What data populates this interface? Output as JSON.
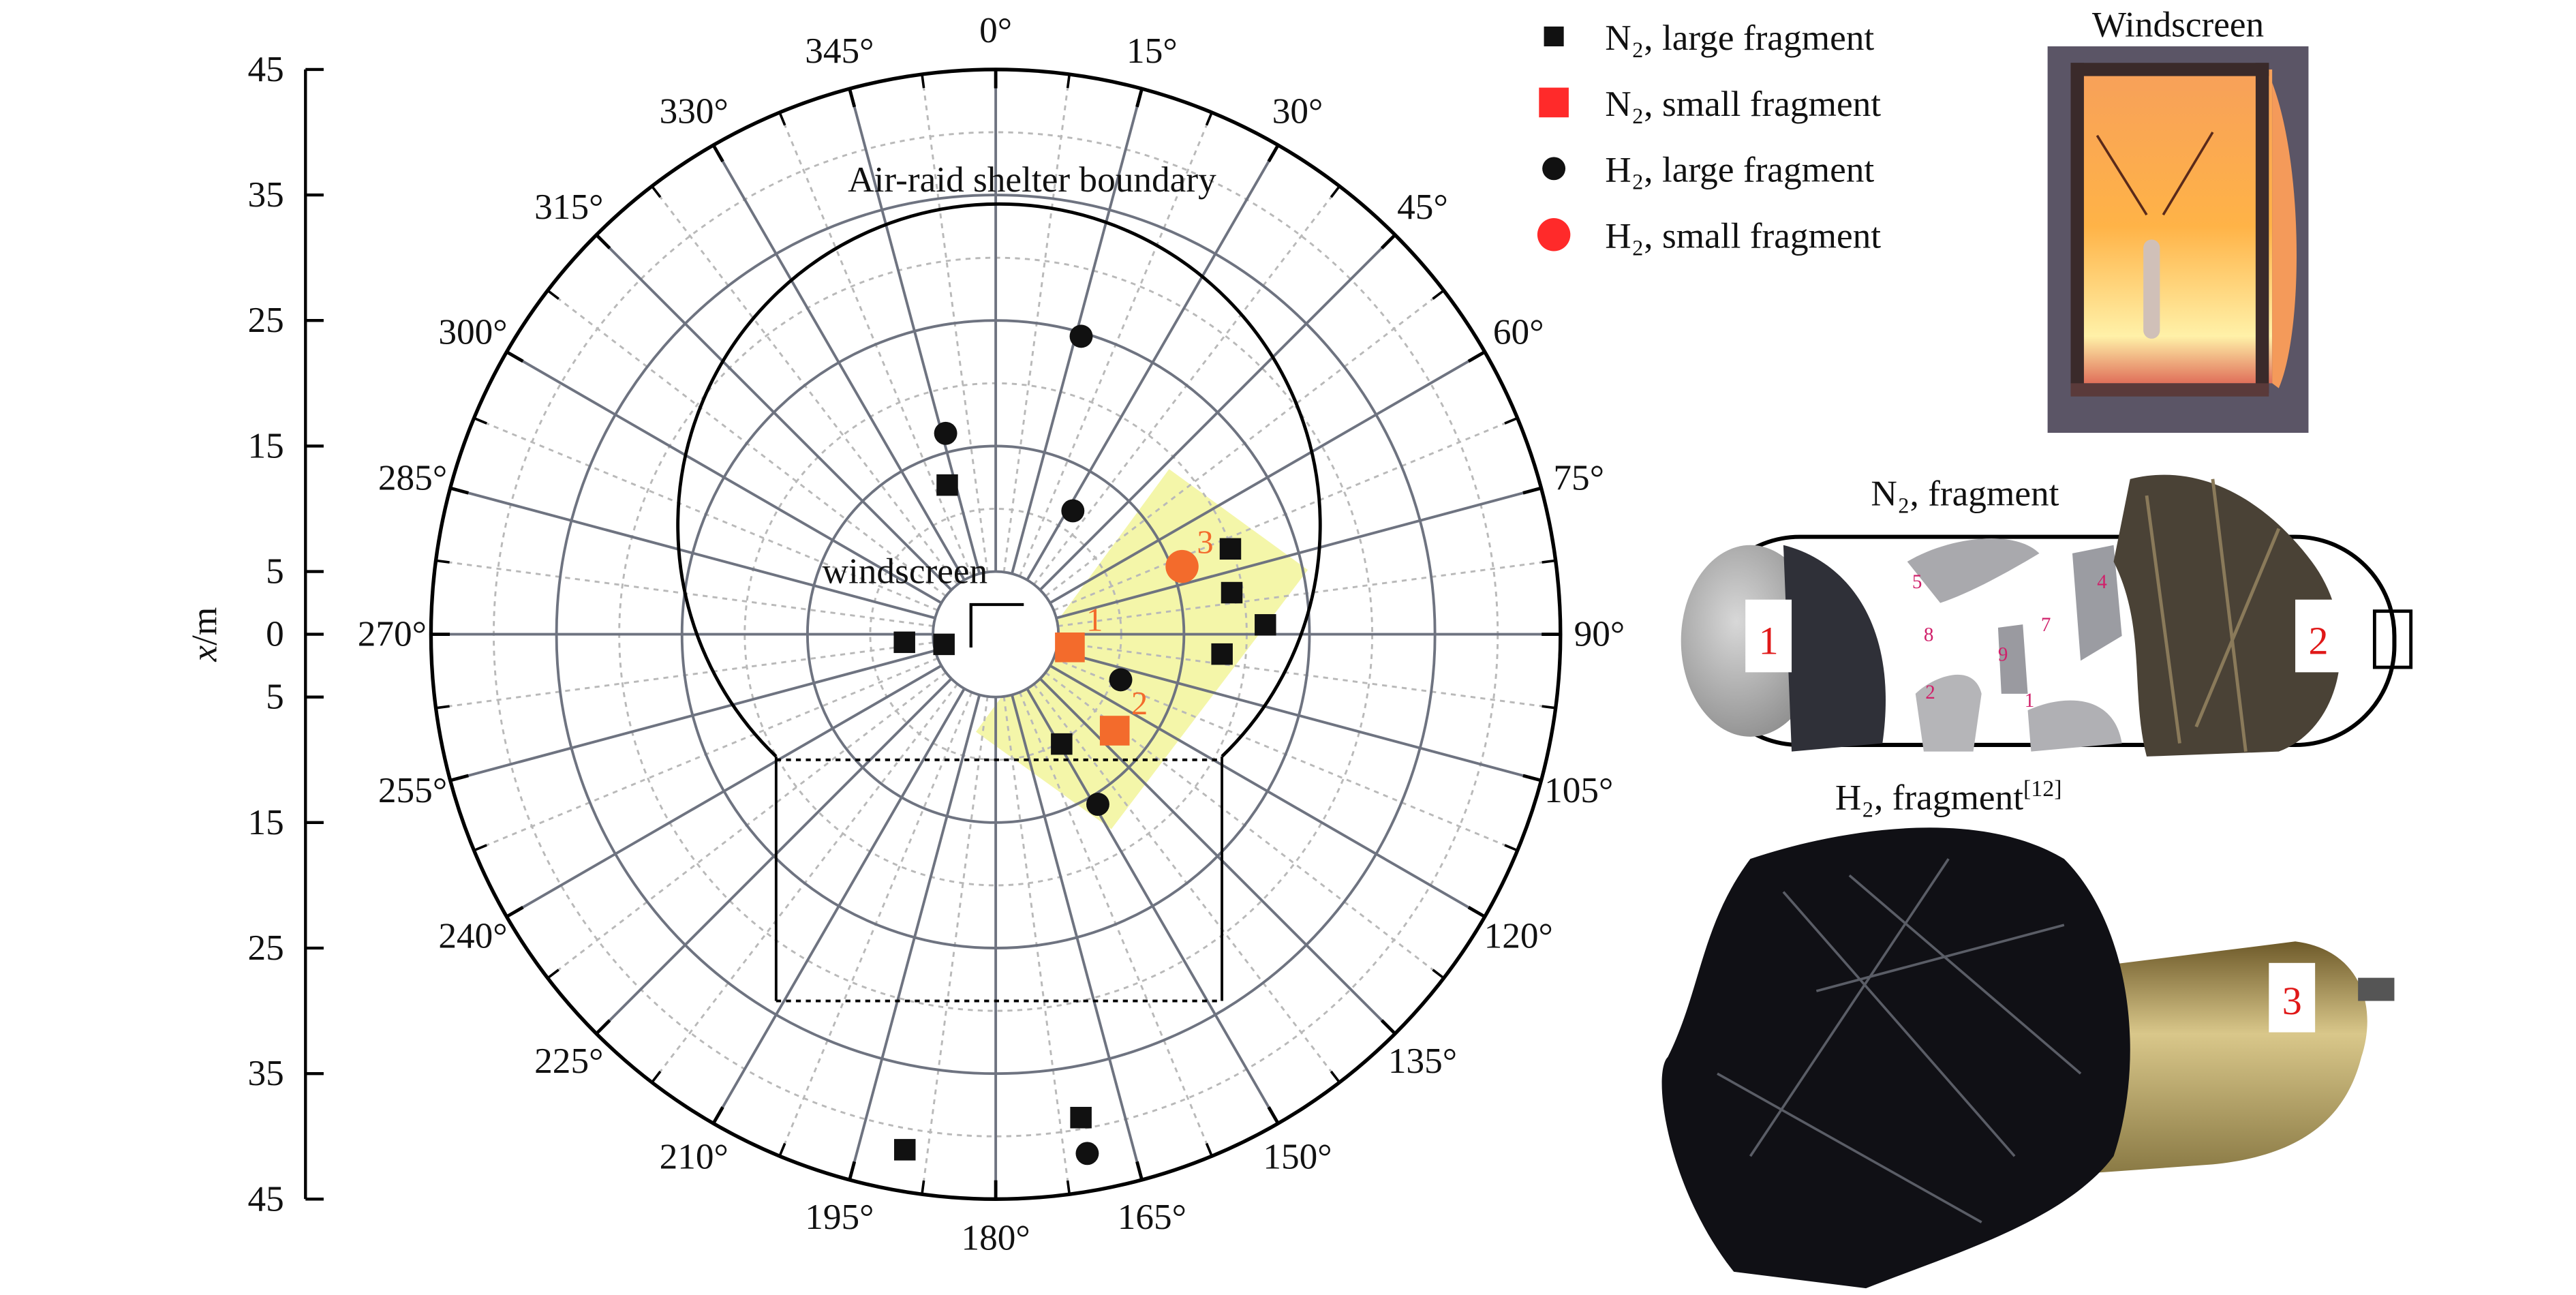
{
  "chart_data": {
    "type": "scatter",
    "coordinate_system": "polar",
    "angular_axis": {
      "direction": "clockwise",
      "zero": "top",
      "tick_labels": [
        "0°",
        "15°",
        "30°",
        "45°",
        "60°",
        "75°",
        "90°",
        "105°",
        "120°",
        "135°",
        "150°",
        "165°",
        "180°",
        "195°",
        "210°",
        "225°",
        "240°",
        "255°",
        "270°",
        "285°",
        "300°",
        "315°",
        "330°",
        "345°"
      ]
    },
    "radial_axis": {
      "label_var": "x",
      "label_unit": "/m",
      "range": [
        0,
        45
      ],
      "upper_ticks": [
        "45",
        "35",
        "25",
        "15",
        "5",
        "0"
      ],
      "lower_ticks": [
        "5",
        "15",
        "25",
        "35",
        "45"
      ],
      "grid": true
    },
    "series": [
      {
        "name": "N₂, large fragment",
        "marker": "square",
        "color": "#111111",
        "points": [
          [
            342,
            12.5
          ],
          [
            265,
            7.3
          ],
          [
            259,
            4.2
          ],
          [
            70,
            19.9
          ],
          [
            80,
            19.1
          ],
          [
            88,
            21.5
          ],
          [
            95,
            18.1
          ],
          [
            149,
            10.2
          ],
          [
            170,
            39.1
          ],
          [
            190,
            41.7
          ]
        ]
      },
      {
        "name": "N₂, small fragment",
        "marker": "square",
        "color": "#f36b2c",
        "legend_color": "#ff2a2a",
        "points": [
          [
            100,
            6.0,
            "1"
          ],
          [
            129,
            12.2,
            "2"
          ]
        ]
      },
      {
        "name": "H₂, large fragment",
        "marker": "circle",
        "color": "#111111",
        "points": [
          [
            16,
            24.7
          ],
          [
            346,
            16.5
          ],
          [
            32,
            11.6
          ],
          [
            110,
            10.6
          ],
          [
            149,
            15.8
          ],
          [
            170,
            42.0
          ]
        ]
      },
      {
        "name": "H₂, small fragment",
        "marker": "circle",
        "color": "#f36b2c",
        "legend_color": "#ff2a2a",
        "points": [
          [
            70,
            15.8,
            "3"
          ]
        ]
      }
    ],
    "legend_position": "top-right",
    "annotations": {
      "boundary_label": "Air-raid shelter boundary",
      "windscreen_label": "windscreen"
    },
    "highlight_color": "#f2f59a"
  },
  "photos": {
    "windscreen": {
      "title": "Windscreen"
    },
    "n2_fragment": {
      "title": "N₂, fragment",
      "tag_1": "1",
      "tag_2": "2",
      "piece_labels": [
        "5",
        "4",
        "8",
        "7",
        "9",
        "2",
        "1"
      ]
    },
    "h2_fragment": {
      "title": "H₂, fragment",
      "ref": "[12]",
      "tag_3": "3"
    }
  }
}
